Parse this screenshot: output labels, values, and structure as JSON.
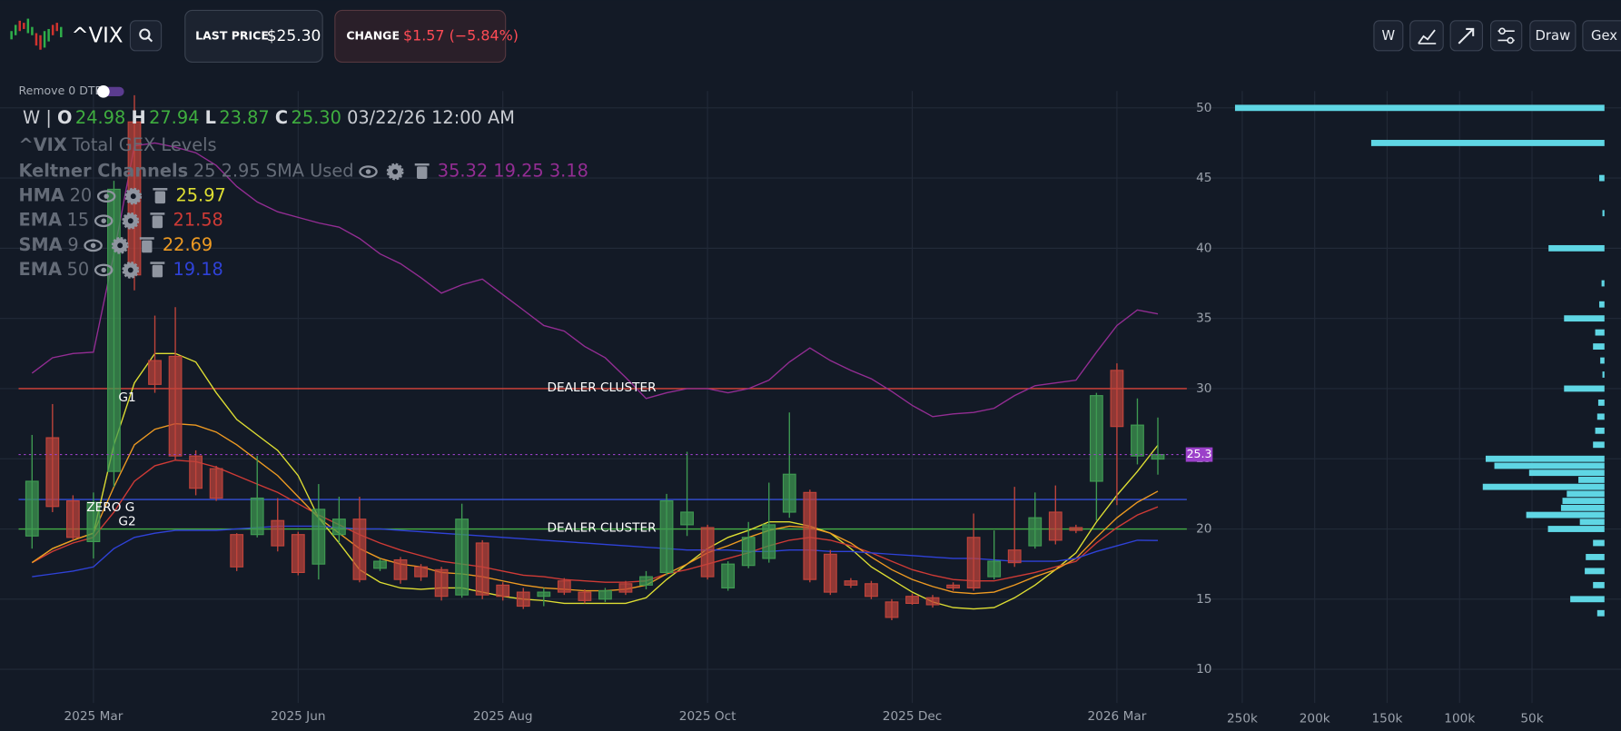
{
  "header": {
    "symbol": "^VIX",
    "last_price_label": "LAST PRICE",
    "last_price": "$25.30",
    "change_label": "CHANGE",
    "change": "$1.57 (−5.84%)"
  },
  "toolbar": {
    "interval": "W",
    "draw": "Draw",
    "gex": "Gex"
  },
  "toggle": {
    "label": "Remove 0 DTE"
  },
  "ohlc_legend": {
    "interval": "W",
    "separator": "|",
    "open_label": "O",
    "open": "24.98",
    "high_label": "H",
    "high": "27.94",
    "low_label": "L",
    "low": "23.87",
    "close_label": "C",
    "close": "25.30",
    "time": "03/22/26 12:00 AM"
  },
  "chart_data": [
    {
      "type": "candlestick",
      "categories": [
        null,
        null,
        null,
        "2025 Mar",
        null,
        null,
        null,
        null,
        null,
        null,
        null,
        null,
        null,
        "2025 Jun",
        null,
        null,
        null,
        null,
        null,
        null,
        null,
        null,
        null,
        "2025 Aug",
        null,
        null,
        null,
        null,
        null,
        null,
        null,
        null,
        null,
        "2025 Oct",
        null,
        null,
        null,
        null,
        null,
        null,
        null,
        null,
        null,
        "2025 Dec",
        null,
        null,
        null,
        null,
        null,
        null,
        null,
        null,
        null,
        "2026 Mar",
        null,
        null
      ],
      "open": [
        19.5,
        26.5,
        22.0,
        19.1,
        24.1,
        49.0,
        32.0,
        32.3,
        25.2,
        24.3,
        19.6,
        19.6,
        20.6,
        19.6,
        17.5,
        19.6,
        20.7,
        17.2,
        17.8,
        17.3,
        17.1,
        15.3,
        19.0,
        16.0,
        15.5,
        15.2,
        16.3,
        15.5,
        15.0,
        16.1,
        16.0,
        16.9,
        20.3,
        20.1,
        15.8,
        17.4,
        17.9,
        21.2,
        22.6,
        18.2,
        16.3,
        16.1,
        14.8,
        15.2,
        15.1,
        16.0,
        19.4,
        16.6,
        18.5,
        18.8,
        21.2,
        20.1,
        23.4,
        31.3,
        25.2,
        24.98
      ],
      "high": [
        26.7,
        28.9,
        22.4,
        22.6,
        44.8,
        50.9,
        35.2,
        35.8,
        25.6,
        24.5,
        19.7,
        25.2,
        22.2,
        19.8,
        23.2,
        22.3,
        22.3,
        17.9,
        18.0,
        17.5,
        17.3,
        21.8,
        19.2,
        16.2,
        15.8,
        15.8,
        16.5,
        15.7,
        15.8,
        16.3,
        17.0,
        22.5,
        25.5,
        20.3,
        17.7,
        20.5,
        23.3,
        28.3,
        22.8,
        18.5,
        16.5,
        16.3,
        15.0,
        15.4,
        15.3,
        16.2,
        21.1,
        19.9,
        23.0,
        22.6,
        23.1,
        20.3,
        29.7,
        31.8,
        29.3,
        27.94
      ],
      "low": [
        18.6,
        21.2,
        19.2,
        17.9,
        23.0,
        37.0,
        29.7,
        24.9,
        22.4,
        22.0,
        17.0,
        19.4,
        18.4,
        16.7,
        16.4,
        19.0,
        16.2,
        17.0,
        16.1,
        16.3,
        14.9,
        15.1,
        15.0,
        14.9,
        14.3,
        14.5,
        15.3,
        14.7,
        14.8,
        15.3,
        15.7,
        16.7,
        19.5,
        16.4,
        15.6,
        17.2,
        17.6,
        20.8,
        16.2,
        15.3,
        15.8,
        15.0,
        13.5,
        14.6,
        14.4,
        15.6,
        15.6,
        16.4,
        17.3,
        18.6,
        18.9,
        19.7,
        20.6,
        21.7,
        24.6,
        23.87
      ],
      "close": [
        23.4,
        21.6,
        19.4,
        21.9,
        44.2,
        38.1,
        30.3,
        25.2,
        22.9,
        22.2,
        17.3,
        22.2,
        18.8,
        16.9,
        21.4,
        20.7,
        16.4,
        17.7,
        16.4,
        16.6,
        15.2,
        20.7,
        15.3,
        15.2,
        14.5,
        15.5,
        15.5,
        14.9,
        15.6,
        15.5,
        16.6,
        22.0,
        21.2,
        16.6,
        17.5,
        19.4,
        20.3,
        23.9,
        16.4,
        15.5,
        16.0,
        15.2,
        13.7,
        14.7,
        14.6,
        15.8,
        15.8,
        17.7,
        17.6,
        20.8,
        19.2,
        19.9,
        29.5,
        27.3,
        27.4,
        25.3
      ],
      "up_color": "#3f9a52",
      "down_color": "#c0443b",
      "ylim": [
        7.6,
        51.2
      ],
      "yticks": [
        10,
        15,
        20,
        25,
        30,
        35,
        40,
        45,
        50
      ],
      "grid": true,
      "series": [
        {
          "name": "Keltner Channels",
          "params": "25 2.95 SMA Used",
          "last": "35.32 19.25 3.18",
          "color": "#932d93",
          "values": [
            31.1,
            32.2,
            32.5,
            32.6,
            39.6,
            47.3,
            47.5,
            47.2,
            46.8,
            45.9,
            44.4,
            43.3,
            42.6,
            42.2,
            41.8,
            41.5,
            40.7,
            39.6,
            38.9,
            37.9,
            36.8,
            37.4,
            37.8,
            36.7,
            35.6,
            34.5,
            34.1,
            33.0,
            32.2,
            30.8,
            29.3,
            29.7,
            30.0,
            30.0,
            29.7,
            30.0,
            30.6,
            31.9,
            32.9,
            32.0,
            31.3,
            30.7,
            29.8,
            28.8,
            28.0,
            28.2,
            28.3,
            28.6,
            29.5,
            30.2,
            30.4,
            30.6,
            32.6,
            34.5,
            35.6,
            35.32
          ]
        },
        {
          "name": "HMA",
          "params": "20",
          "last": "25.97",
          "color": "#dede33",
          "values": [
            17.6,
            18.6,
            19.2,
            19.7,
            26.0,
            30.4,
            32.5,
            32.5,
            31.9,
            29.7,
            27.8,
            26.7,
            25.6,
            23.8,
            20.8,
            19.0,
            17.1,
            16.2,
            15.8,
            15.7,
            15.8,
            15.8,
            15.5,
            15.2,
            15.0,
            14.9,
            14.7,
            14.7,
            14.7,
            14.7,
            15.1,
            16.4,
            17.5,
            18.6,
            19.4,
            19.9,
            20.5,
            20.5,
            20.2,
            19.7,
            18.6,
            17.3,
            16.4,
            15.5,
            14.8,
            14.4,
            14.3,
            14.4,
            15.1,
            16.0,
            17.1,
            18.3,
            20.5,
            22.4,
            24.1,
            25.97
          ]
        },
        {
          "name": "EMA",
          "params": "15",
          "last": "21.58",
          "color": "#cf3b36",
          "values": [
            17.6,
            18.4,
            19.0,
            19.4,
            21.2,
            23.4,
            24.5,
            24.9,
            24.8,
            24.4,
            23.8,
            23.2,
            22.6,
            21.8,
            21.0,
            20.3,
            19.6,
            19.0,
            18.5,
            18.1,
            17.7,
            17.5,
            17.3,
            17.0,
            16.7,
            16.6,
            16.4,
            16.3,
            16.2,
            16.2,
            16.3,
            16.8,
            17.1,
            17.5,
            17.9,
            18.3,
            18.8,
            19.2,
            19.4,
            19.2,
            18.8,
            18.3,
            17.7,
            17.1,
            16.7,
            16.4,
            16.3,
            16.3,
            16.6,
            16.9,
            17.3,
            17.7,
            19.0,
            20.1,
            21.0,
            21.58
          ]
        },
        {
          "name": "SMA",
          "params": "9",
          "last": "22.69",
          "color": "#ee9a22",
          "values": [
            17.6,
            18.6,
            19.2,
            19.7,
            23.0,
            26.0,
            27.1,
            27.5,
            27.4,
            26.9,
            26.0,
            24.9,
            23.8,
            22.3,
            20.8,
            19.7,
            18.6,
            17.9,
            17.5,
            17.3,
            16.9,
            16.8,
            16.6,
            16.3,
            16.0,
            15.8,
            15.7,
            15.6,
            15.6,
            15.7,
            16.0,
            16.8,
            17.5,
            18.3,
            18.8,
            19.4,
            19.9,
            20.2,
            20.1,
            19.7,
            19.0,
            18.0,
            17.1,
            16.4,
            15.9,
            15.5,
            15.4,
            15.5,
            16.0,
            16.6,
            17.1,
            17.9,
            19.4,
            20.8,
            21.9,
            22.69
          ]
        },
        {
          "name": "EMA",
          "params": "50",
          "last": "19.18",
          "color": "#2f42d8",
          "values": [
            16.6,
            16.8,
            17.0,
            17.3,
            18.6,
            19.4,
            19.7,
            19.9,
            19.9,
            19.9,
            20.0,
            20.1,
            20.2,
            20.2,
            20.2,
            20.1,
            20.0,
            20.0,
            19.9,
            19.8,
            19.7,
            19.6,
            19.5,
            19.4,
            19.3,
            19.2,
            19.1,
            19.0,
            18.9,
            18.8,
            18.7,
            18.6,
            18.5,
            18.5,
            18.5,
            18.4,
            18.4,
            18.5,
            18.5,
            18.4,
            18.4,
            18.3,
            18.2,
            18.1,
            18.0,
            17.9,
            17.9,
            17.8,
            17.7,
            17.7,
            17.7,
            17.9,
            18.4,
            18.8,
            19.2,
            19.18
          ]
        }
      ],
      "levels": [
        {
          "label": "DEALER CLUSTER",
          "tag": "G1",
          "value": 30,
          "color": "#d9453b"
        },
        {
          "label": "ZERO G",
          "value": 22.1,
          "color": "#3450d8"
        },
        {
          "label": "DEALER CLUSTER",
          "tag": "G2",
          "value": 20,
          "color": "#46b046"
        }
      ],
      "last_price": {
        "value": 25.3,
        "color": "#9b40c9"
      }
    },
    {
      "type": "bar",
      "orientation": "horizontal",
      "title": "Total GEX Levels",
      "color": "#5fd6e4",
      "categories": [
        50,
        47.5,
        45,
        42.5,
        40,
        37.5,
        36,
        35,
        34,
        33,
        32,
        31,
        30,
        29,
        28,
        27,
        26,
        25,
        24.5,
        24,
        23.5,
        23,
        22.5,
        22,
        21.5,
        21,
        20.5,
        20,
        19,
        18,
        17,
        16,
        15,
        14
      ],
      "values": [
        255000,
        161000,
        3600,
        1400,
        38600,
        2000,
        3600,
        27900,
        6400,
        7900,
        2900,
        1400,
        27900,
        4300,
        5000,
        6400,
        7900,
        82000,
        76000,
        52000,
        18000,
        84000,
        26000,
        29000,
        30000,
        54000,
        17000,
        39000,
        7900,
        12900,
        13600,
        7900,
        23600,
        5000
      ],
      "xlim": [
        274000,
        0
      ],
      "xticks": [
        {
          "value": 250000,
          "label": "250k"
        },
        {
          "value": 200000,
          "label": "200k"
        },
        {
          "value": 150000,
          "label": "150k"
        },
        {
          "value": 100000,
          "label": "100k"
        },
        {
          "value": 50000,
          "label": "50k"
        }
      ],
      "grid": true
    }
  ]
}
